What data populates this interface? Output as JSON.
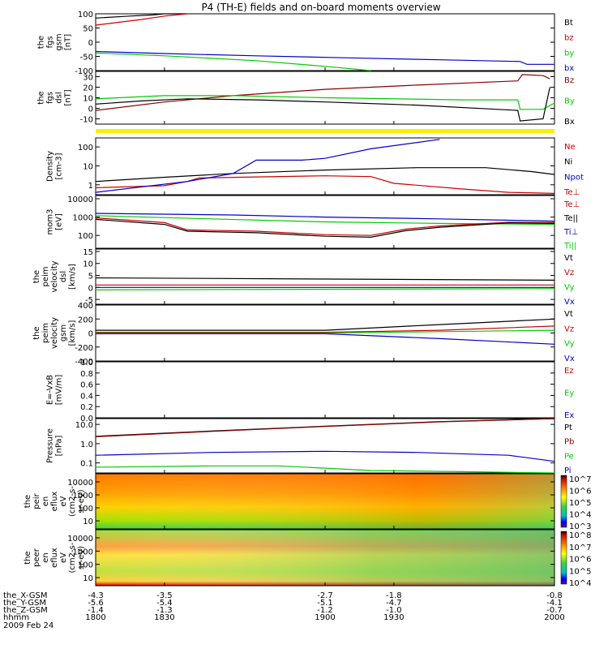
{
  "title": "P4 (TH-E) fields and on-board moments overview",
  "chart_data": [
    {
      "type": "line",
      "ylabel": [
        "the",
        "fgs",
        "gsm",
        "[nT]"
      ],
      "yticks": [
        100,
        50,
        0,
        -50,
        -100
      ],
      "ylim": [
        -100,
        100
      ],
      "legend": [
        {
          "name": "Bt",
          "color": "#000000"
        },
        {
          "name": "bz",
          "color": "#cc0000"
        },
        {
          "name": "by",
          "color": "#00cc00"
        },
        {
          "name": "bx",
          "color": "#0000cc"
        }
      ],
      "series": [
        {
          "name": "Bt",
          "color": "#000000",
          "x": [
            1800,
            1815,
            1825,
            1830,
            1840
          ],
          "y": [
            85,
            92,
            96,
            100,
            100
          ]
        },
        {
          "name": "bz",
          "color": "#cc0000",
          "x": [
            1800,
            1810,
            1820,
            1830,
            1840
          ],
          "y": [
            60,
            70,
            80,
            92,
            100
          ]
        },
        {
          "name": "by",
          "color": "#00cc00",
          "x": [
            1800,
            1830,
            1870,
            1900,
            1920
          ],
          "y": [
            -38,
            -48,
            -65,
            -85,
            -100
          ]
        },
        {
          "name": "bx",
          "color": "#0000cc",
          "x": [
            1800,
            1830,
            1870,
            1910,
            1950,
            1985,
            1988,
            2000
          ],
          "y": [
            -33,
            -40,
            -48,
            -55,
            -62,
            -68,
            -78,
            -78
          ]
        }
      ]
    },
    {
      "type": "line",
      "ylabel": [
        "the",
        "fgs",
        "dsl",
        "[nT]"
      ],
      "yticks": [
        30,
        20,
        10,
        0,
        -10
      ],
      "ylim": [
        -15,
        35
      ],
      "legend": [
        {
          "name": "Bz",
          "color": "#880000"
        },
        {
          "name": "By",
          "color": "#00cc00"
        },
        {
          "name": "Bx",
          "color": "#000000"
        }
      ],
      "series": [
        {
          "name": "Bz",
          "color": "#880000",
          "x": [
            1800,
            1830,
            1860,
            1900,
            1940,
            1984,
            1986,
            1995,
            1998
          ],
          "y": [
            -2,
            6,
            12,
            18,
            22,
            26,
            32,
            31,
            28
          ]
        },
        {
          "name": "By",
          "color": "#00cc00",
          "x": [
            1800,
            1830,
            1860,
            1900,
            1960,
            1984,
            1985,
            1995,
            2000
          ],
          "y": [
            9,
            12,
            12,
            10,
            8,
            8,
            -1,
            -1,
            5
          ]
        },
        {
          "name": "Bx",
          "color": "#000000",
          "x": [
            1800,
            1820,
            1840,
            1870,
            1900,
            1940,
            1984,
            1985,
            1995,
            1998
          ],
          "y": [
            4,
            7,
            9,
            8,
            6,
            3,
            -2,
            -12,
            -10,
            20
          ]
        }
      ]
    },
    {
      "type": "line",
      "ylabel": [
        "Density",
        "[cm-3]"
      ],
      "yticks": [
        "100",
        "10",
        "1"
      ],
      "ylim": [
        0.3,
        300
      ],
      "log": true,
      "legend": [
        {
          "name": "Ne",
          "color": "#cc0000"
        },
        {
          "name": "Ni",
          "color": "#000000"
        },
        {
          "name": "Npot",
          "color": "#0000cc"
        },
        {
          "name": "Te⊥",
          "color": "#cc0000"
        }
      ],
      "series": [
        {
          "name": "Ni",
          "color": "#000000",
          "x": [
            1800,
            1830,
            1860,
            1900,
            1940,
            1970,
            1990,
            2000
          ],
          "y": [
            1.5,
            2.5,
            4,
            6,
            8,
            8,
            5,
            3.5
          ]
        },
        {
          "name": "Ne",
          "color": "#cc0000",
          "x": [
            1800,
            1830,
            1840,
            1845,
            1870,
            1900,
            1920,
            1930,
            1960,
            1980,
            2000
          ],
          "y": [
            0.7,
            0.9,
            1.5,
            2.3,
            2.6,
            3,
            2.7,
            1.2,
            0.6,
            0.4,
            0.35
          ]
        },
        {
          "name": "Npot",
          "color": "#0000cc",
          "x": [
            1800,
            1840,
            1860,
            1870,
            1890,
            1900,
            1920,
            1950
          ],
          "y": [
            0.4,
            1.5,
            4,
            20,
            20,
            25,
            80,
            250
          ]
        }
      ]
    },
    {
      "type": "line",
      "ylabel": [
        "mom3",
        "[eV]"
      ],
      "yticks": [
        "10000",
        "1000",
        "100"
      ],
      "ylim": [
        20,
        15000
      ],
      "log": true,
      "legend": [
        {
          "name": "Te⊥",
          "color": "#cc0000"
        },
        {
          "name": "Te||",
          "color": "#000000"
        },
        {
          "name": "Ti⊥",
          "color": "#0000cc"
        },
        {
          "name": "Ti||",
          "color": "#00cc00"
        }
      ],
      "series": [
        {
          "name": "Ti⊥",
          "color": "#0000cc",
          "x": [
            1800,
            1860,
            1900,
            1950,
            2000
          ],
          "y": [
            1600,
            1300,
            1000,
            800,
            600
          ]
        },
        {
          "name": "Ti||",
          "color": "#00cc00",
          "x": [
            1800,
            1850,
            1900,
            1950,
            2000
          ],
          "y": [
            1200,
            800,
            550,
            450,
            400
          ]
        },
        {
          "name": "Te⊥",
          "color": "#cc0000",
          "x": [
            1800,
            1830,
            1840,
            1870,
            1900,
            1920,
            1935,
            1950,
            1980,
            2000
          ],
          "y": [
            900,
            500,
            200,
            170,
            110,
            100,
            220,
            330,
            520,
            500
          ]
        },
        {
          "name": "Te||",
          "color": "#000000",
          "x": [
            1800,
            1830,
            1840,
            1870,
            1900,
            1920,
            1935,
            1950,
            1980,
            2000
          ],
          "y": [
            750,
            400,
            170,
            140,
            90,
            80,
            180,
            280,
            480,
            450
          ]
        }
      ]
    },
    {
      "type": "line",
      "ylabel": [
        "the",
        "peim",
        "velocity",
        "dsl",
        "[km/s]"
      ],
      "yticks": [
        15,
        10,
        5,
        0,
        -5
      ],
      "ylim": [
        -7,
        16
      ],
      "legend": [
        {
          "name": "Vt",
          "color": "#000000"
        },
        {
          "name": "Vz",
          "color": "#cc0000"
        },
        {
          "name": "Vy",
          "color": "#00cc00"
        },
        {
          "name": "Vx",
          "color": "#0000cc"
        }
      ],
      "series": [
        {
          "name": "Vt",
          "color": "#000000",
          "x": [
            1800,
            2000
          ],
          "y": [
            4,
            3
          ]
        },
        {
          "name": "Vz",
          "color": "#cc0000",
          "x": [
            1800,
            2000
          ],
          "y": [
            1,
            1
          ]
        },
        {
          "name": "Vy",
          "color": "#00cc00",
          "x": [
            1800,
            2000
          ],
          "y": [
            -1,
            -0.5
          ]
        },
        {
          "name": "Vx",
          "color": "#0000cc",
          "x": [
            1800,
            2000
          ],
          "y": [
            0,
            0
          ]
        }
      ]
    },
    {
      "type": "line",
      "ylabel": [
        "the",
        "peim",
        "velocity",
        "gsm",
        "[km/s]"
      ],
      "yticks": [
        400,
        200,
        0,
        -200,
        -400
      ],
      "ylim": [
        -400,
        400
      ],
      "legend": [
        {
          "name": "Vt",
          "color": "#000000"
        },
        {
          "name": "Vz",
          "color": "#cc0000"
        },
        {
          "name": "Vy",
          "color": "#00cc00"
        },
        {
          "name": "Vx",
          "color": "#0000cc"
        }
      ],
      "series": [
        {
          "name": "Vt",
          "color": "#000000",
          "x": [
            1800,
            1900,
            1950,
            2000
          ],
          "y": [
            40,
            40,
            120,
            200
          ]
        },
        {
          "name": "Vz",
          "color": "#cc0000",
          "x": [
            1800,
            1900,
            1950,
            2000
          ],
          "y": [
            10,
            10,
            40,
            100
          ]
        },
        {
          "name": "Vy",
          "color": "#00cc00",
          "x": [
            1800,
            1900,
            1950,
            2000
          ],
          "y": [
            0,
            0,
            20,
            40
          ]
        },
        {
          "name": "Vx",
          "color": "#0000cc",
          "x": [
            1800,
            1900,
            1950,
            2000
          ],
          "y": [
            -10,
            -10,
            -80,
            -160
          ]
        }
      ]
    },
    {
      "type": "line",
      "ylabel": [
        "E=-VxB",
        "[mV/m]"
      ],
      "yticks": [
        "1.0",
        "0.8",
        "0.6",
        "0.4",
        "0.2",
        "0.0"
      ],
      "ylim": [
        0,
        1
      ],
      "legend": [
        {
          "name": "Ez",
          "color": "#cc0000"
        },
        {
          "name": "Ey",
          "color": "#00cc00"
        },
        {
          "name": "Ex",
          "color": "#0000cc"
        }
      ],
      "series": []
    },
    {
      "type": "line",
      "ylabel": [
        "Pressure",
        "[nPa]"
      ],
      "yticks": [
        "10.0",
        "1.0",
        "0.1"
      ],
      "ylim": [
        0.03,
        20
      ],
      "log": true,
      "legend": [
        {
          "name": "Pt",
          "color": "#000000"
        },
        {
          "name": "Pb",
          "color": "#880000"
        },
        {
          "name": "Pe",
          "color": "#00cc00"
        },
        {
          "name": "Pi",
          "color": "#0000cc"
        }
      ],
      "series": [
        {
          "name": "Pt",
          "color": "#000000",
          "x": [
            1800,
            1850,
            1900,
            1950,
            2000
          ],
          "y": [
            2.4,
            4.5,
            8,
            14,
            20
          ]
        },
        {
          "name": "Pb",
          "color": "#880000",
          "x": [
            1800,
            1850,
            1900,
            1950,
            2000
          ],
          "y": [
            2.3,
            4.3,
            7.8,
            13.5,
            20
          ]
        },
        {
          "name": "Pi",
          "color": "#0000cc",
          "x": [
            1800,
            1850,
            1900,
            1940,
            1980,
            2000
          ],
          "y": [
            0.25,
            0.35,
            0.4,
            0.35,
            0.25,
            0.12
          ]
        },
        {
          "name": "Pe",
          "color": "#00cc00",
          "x": [
            1800,
            1850,
            1880,
            1920,
            1960,
            2000
          ],
          "y": [
            0.06,
            0.07,
            0.07,
            0.04,
            0.035,
            0.03
          ]
        }
      ]
    },
    {
      "type": "heatmap",
      "ylabel": [
        "the",
        "peir",
        "en",
        "eflux",
        "eV",
        "(cm2-s-",
        "sr-eV)"
      ],
      "yticks": [
        "10000",
        "1000",
        "100",
        "10"
      ],
      "colorbar_labels": [
        "10^7",
        "10^6",
        "10^5",
        "10^4",
        "10^3"
      ]
    },
    {
      "type": "heatmap",
      "ylabel": [
        "the",
        "peer",
        "en",
        "eflux",
        "eV",
        "(cm2-s-",
        "sr-eV)"
      ],
      "yticks": [
        "10000",
        "1000",
        "100",
        "10"
      ],
      "colorbar_labels": [
        "10^8",
        "10^7",
        "10^6",
        "10^5",
        "10^4"
      ]
    }
  ],
  "xaxis": {
    "rows": [
      {
        "label": "the_X-GSM",
        "values": [
          "-4.3",
          "-3.5",
          "-2.7",
          "-1.8",
          "-0.8"
        ]
      },
      {
        "label": "the_Y-GSM",
        "values": [
          "-5.6",
          "-5.4",
          "-5.1",
          "-4.7",
          "-4.1"
        ]
      },
      {
        "label": "the_Z-GSM",
        "values": [
          "-1.4",
          "-1.3",
          "-1.2",
          "-1.0",
          "-0.7"
        ]
      },
      {
        "label": "hhmm",
        "values": [
          "1800",
          "1830",
          "1900",
          "1930",
          "2000"
        ]
      }
    ],
    "date": "2009 Feb 24",
    "xlim": [
      1800,
      2000
    ]
  }
}
